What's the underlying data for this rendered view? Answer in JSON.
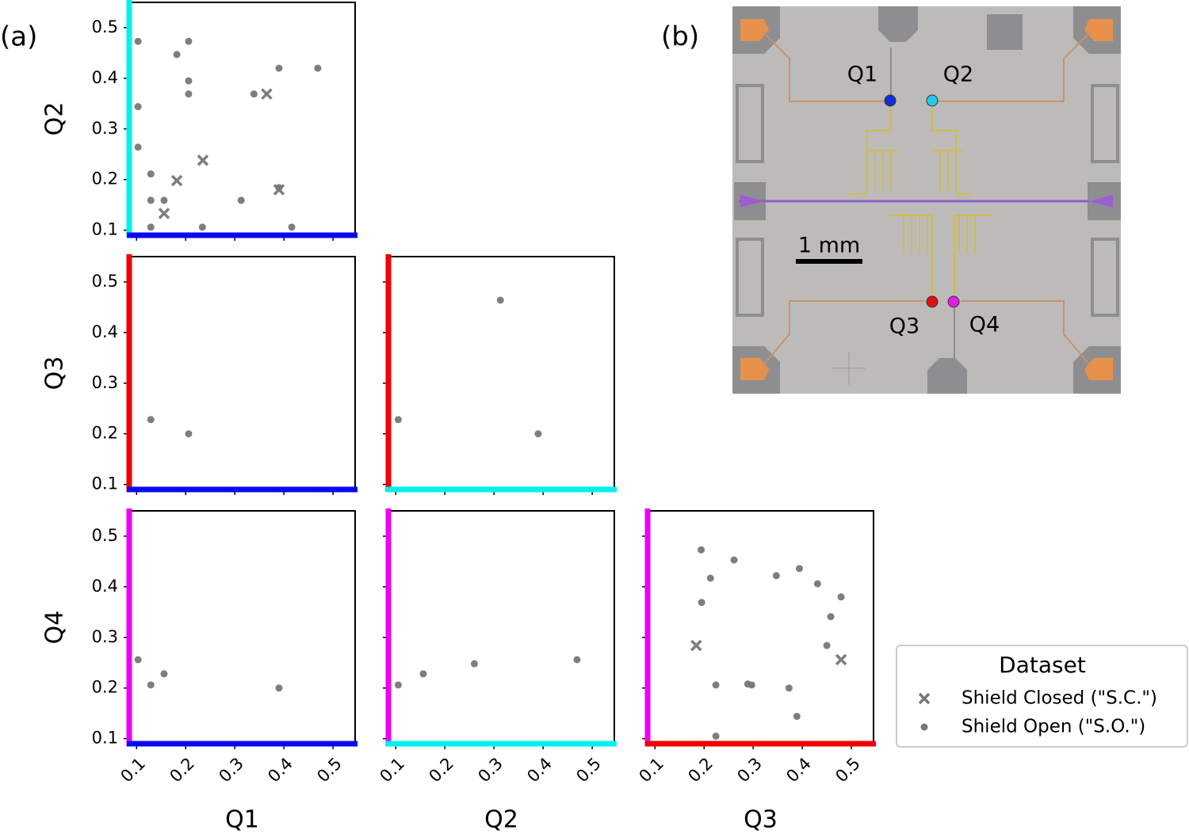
{
  "panel_labels": [
    "(a)",
    "(b)"
  ],
  "chip": {
    "qubit_labels": [
      "Q1",
      "Q2",
      "Q3",
      "Q4"
    ],
    "scale_bar": "1 mm"
  },
  "legend": {
    "title": "Dataset",
    "entries": [
      {
        "name": "Shield Closed (\"S.C.\")",
        "marker": "x",
        "color": "#777777"
      },
      {
        "name": "Shield Open (\"S.O.\")",
        "marker": "o",
        "color": "#777777"
      }
    ]
  },
  "chart_data": [
    {
      "type": "scatter",
      "ylabel": "Q2",
      "xaxis_color": "#0a0af0",
      "yaxis_color": "#00f0f0",
      "xlim": [
        0.085,
        0.545
      ],
      "ylim": [
        0.09,
        0.55
      ],
      "xticks": [
        0.1,
        0.2,
        0.3,
        0.4,
        0.5
      ],
      "yticks": [
        0.1,
        0.2,
        0.3,
        0.4,
        0.5
      ],
      "xtick_labels": false,
      "ytick_labels": true,
      "series": [
        {
          "marker": "x",
          "color": "#777777",
          "x": [
            0.365,
            0.235,
            0.182,
            0.39,
            0.156
          ],
          "values": [
            0.369,
            0.238,
            0.198,
            0.18,
            0.133
          ]
        },
        {
          "marker": "o",
          "color": "#777777",
          "x": [
            0.103,
            0.206,
            0.182,
            0.206,
            0.206,
            0.39,
            0.469,
            0.339,
            0.103,
            0.103,
            0.129,
            0.129,
            0.156,
            0.313,
            0.39,
            0.129,
            0.234,
            0.416
          ],
          "values": [
            0.473,
            0.473,
            0.447,
            0.395,
            0.369,
            0.42,
            0.42,
            0.369,
            0.344,
            0.264,
            0.211,
            0.159,
            0.159,
            0.159,
            0.184,
            0.106,
            0.106,
            0.106
          ]
        }
      ]
    },
    {
      "type": "scatter",
      "ylabel": "Q3",
      "xaxis_color": "#0a0af0",
      "yaxis_color": "#f00000",
      "xlim": [
        0.085,
        0.545
      ],
      "ylim": [
        0.09,
        0.55
      ],
      "xticks": [
        0.1,
        0.2,
        0.3,
        0.4,
        0.5
      ],
      "yticks": [
        0.1,
        0.2,
        0.3,
        0.4,
        0.5
      ],
      "xtick_labels": false,
      "ytick_labels": true,
      "series": [
        {
          "marker": "o",
          "color": "#777777",
          "x": [
            0.129,
            0.206
          ],
          "values": [
            0.228,
            0.2
          ]
        }
      ]
    },
    {
      "type": "scatter",
      "xaxis_color": "#00f0f0",
      "yaxis_color": "#f00000",
      "xlim": [
        0.085,
        0.545
      ],
      "ylim": [
        0.09,
        0.55
      ],
      "xticks": [
        0.1,
        0.2,
        0.3,
        0.4,
        0.5
      ],
      "yticks": [
        0.1,
        0.2,
        0.3,
        0.4,
        0.5
      ],
      "xtick_labels": false,
      "ytick_labels": false,
      "series": [
        {
          "marker": "o",
          "color": "#777777",
          "x": [
            0.313,
            0.105,
            0.39
          ],
          "values": [
            0.464,
            0.228,
            0.2
          ]
        }
      ]
    },
    {
      "type": "scatter",
      "xlabel": "Q1",
      "ylabel": "Q4",
      "xaxis_color": "#0a0af0",
      "yaxis_color": "#f000f0",
      "xlim": [
        0.085,
        0.545
      ],
      "ylim": [
        0.09,
        0.55
      ],
      "xticks": [
        0.1,
        0.2,
        0.3,
        0.4,
        0.5
      ],
      "yticks": [
        0.1,
        0.2,
        0.3,
        0.4,
        0.5
      ],
      "xtick_labels": true,
      "ytick_labels": true,
      "series": [
        {
          "marker": "o",
          "color": "#777777",
          "x": [
            0.103,
            0.129,
            0.156,
            0.39
          ],
          "values": [
            0.256,
            0.206,
            0.228,
            0.2
          ]
        }
      ]
    },
    {
      "type": "scatter",
      "xlabel": "Q2",
      "xaxis_color": "#00f0f0",
      "yaxis_color": "#f000f0",
      "xlim": [
        0.085,
        0.545
      ],
      "ylim": [
        0.09,
        0.55
      ],
      "xticks": [
        0.1,
        0.2,
        0.3,
        0.4,
        0.5
      ],
      "yticks": [
        0.1,
        0.2,
        0.3,
        0.4,
        0.5
      ],
      "xtick_labels": true,
      "ytick_labels": false,
      "series": [
        {
          "marker": "o",
          "color": "#777777",
          "x": [
            0.105,
            0.156,
            0.26,
            0.469
          ],
          "values": [
            0.206,
            0.228,
            0.248,
            0.256
          ]
        }
      ]
    },
    {
      "type": "scatter",
      "xlabel": "Q3",
      "xaxis_color": "#f00000",
      "yaxis_color": "#f000f0",
      "xlim": [
        0.085,
        0.545
      ],
      "ylim": [
        0.09,
        0.55
      ],
      "xticks": [
        0.1,
        0.2,
        0.3,
        0.4,
        0.5
      ],
      "yticks": [
        0.1,
        0.2,
        0.3,
        0.4,
        0.5
      ],
      "xtick_labels": true,
      "ytick_labels": false,
      "series": [
        {
          "marker": "x",
          "color": "#777777",
          "x": [
            0.184,
            0.479
          ],
          "values": [
            0.284,
            0.256
          ]
        },
        {
          "marker": "o",
          "color": "#777777",
          "x": [
            0.194,
            0.261,
            0.213,
            0.347,
            0.394,
            0.431,
            0.195,
            0.479,
            0.458,
            0.45,
            0.224,
            0.289,
            0.297,
            0.373,
            0.389,
            0.224
          ],
          "values": [
            0.473,
            0.453,
            0.417,
            0.422,
            0.436,
            0.406,
            0.369,
            0.38,
            0.341,
            0.284,
            0.206,
            0.208,
            0.206,
            0.2,
            0.144,
            0.105
          ]
        }
      ]
    }
  ]
}
